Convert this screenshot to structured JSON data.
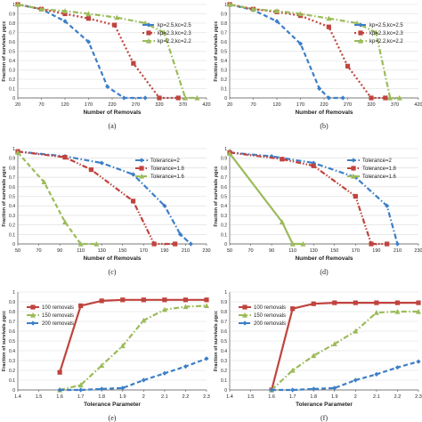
{
  "chart_data": [
    {
      "type": "line",
      "caption": "(a)",
      "ylabel": "Fraction of survivals ρgcc",
      "xlabel": "Number of Removals",
      "xlim": [
        20,
        420
      ],
      "xticks": [
        20,
        70,
        120,
        170,
        220,
        270,
        320,
        370,
        420
      ],
      "ylim": [
        0,
        1
      ],
      "yticks": [
        0,
        0.1,
        0.2,
        0.3,
        0.4,
        0.5,
        0.6,
        0.7,
        0.8,
        0.9,
        1
      ],
      "legend_position": "right",
      "series": [
        {
          "name": "kp=2.5,kc=2.5",
          "color": "#3d7fc7",
          "dash": "dash",
          "marker": "diamond",
          "x": [
            20,
            70,
            120,
            170,
            210,
            245,
            290
          ],
          "y": [
            1.0,
            0.95,
            0.82,
            0.6,
            0.12,
            0.0,
            0.0
          ]
        },
        {
          "name": "kp=2.3,kc=2.3",
          "color": "#c0433e",
          "dash": "dot",
          "marker": "square",
          "x": [
            20,
            70,
            120,
            170,
            225,
            265,
            320,
            360
          ],
          "y": [
            1.0,
            0.95,
            0.9,
            0.85,
            0.78,
            0.37,
            0.0,
            0.0
          ]
        },
        {
          "name": "kp=2.2,kc=2.2",
          "color": "#9bbb59",
          "dash": "dashdot",
          "marker": "triangle",
          "x": [
            20,
            70,
            120,
            170,
            230,
            290,
            330,
            375,
            400
          ],
          "y": [
            1.0,
            0.95,
            0.93,
            0.9,
            0.86,
            0.8,
            0.7,
            0.0,
            0.0
          ]
        }
      ]
    },
    {
      "type": "line",
      "caption": "(b)",
      "ylabel": "Fraction of survivals ρgcc",
      "xlabel": "Number of Removals",
      "xlim": [
        20,
        420
      ],
      "xticks": [
        20,
        70,
        120,
        170,
        220,
        270,
        320,
        370,
        420
      ],
      "ylim": [
        0,
        1
      ],
      "yticks": [
        0,
        0.1,
        0.2,
        0.3,
        0.4,
        0.5,
        0.6,
        0.7,
        0.8,
        0.9,
        1
      ],
      "legend_position": "right",
      "series": [
        {
          "name": "kp=2.5,kc=2.5",
          "color": "#3d7fc7",
          "dash": "dash",
          "marker": "diamond",
          "x": [
            20,
            70,
            120,
            170,
            210,
            230,
            260
          ],
          "y": [
            1.0,
            0.94,
            0.82,
            0.58,
            0.1,
            0.0,
            0.0
          ]
        },
        {
          "name": "kp=2.3,kc=2.3",
          "color": "#c0433e",
          "dash": "dot",
          "marker": "square",
          "x": [
            20,
            70,
            120,
            170,
            230,
            270,
            320,
            350
          ],
          "y": [
            1.0,
            0.95,
            0.92,
            0.88,
            0.76,
            0.34,
            0.0,
            0.0
          ]
        },
        {
          "name": "kp=2.2,kc=2.2",
          "color": "#9bbb59",
          "dash": "dashdot",
          "marker": "triangle",
          "x": [
            20,
            70,
            120,
            170,
            230,
            290,
            330,
            360,
            380
          ],
          "y": [
            1.0,
            0.95,
            0.93,
            0.9,
            0.85,
            0.8,
            0.7,
            0.0,
            0.0
          ]
        }
      ]
    },
    {
      "type": "line",
      "caption": "(c)",
      "ylabel": "Fraction of survivals ρgcc",
      "xlabel": "Number of Removals",
      "xlim": [
        50,
        230
      ],
      "xticks": [
        50,
        70,
        90,
        110,
        130,
        150,
        170,
        190,
        210,
        230
      ],
      "ylim": [
        0,
        1
      ],
      "yticks": [
        0,
        0.1,
        0.2,
        0.3,
        0.4,
        0.5,
        0.6,
        0.7,
        0.8,
        0.9,
        1
      ],
      "legend_position": "top-right",
      "series": [
        {
          "name": "Tolerance=2",
          "color": "#3d7fc7",
          "dash": "dashdot",
          "marker": "diamond",
          "x": [
            50,
            95,
            130,
            160,
            190,
            205,
            215
          ],
          "y": [
            0.97,
            0.92,
            0.85,
            0.73,
            0.4,
            0.1,
            0.0
          ]
        },
        {
          "name": "Tolerance=1.8",
          "color": "#c0433e",
          "dash": "dashdotdot",
          "marker": "square",
          "x": [
            50,
            95,
            120,
            160,
            180,
            200
          ],
          "y": [
            0.97,
            0.91,
            0.78,
            0.45,
            0.0,
            0.0
          ]
        },
        {
          "name": "Tolerance=1.6",
          "color": "#9bbb59",
          "dash": "dash",
          "marker": "triangle",
          "x": [
            50,
            75,
            95,
            110,
            125
          ],
          "y": [
            0.96,
            0.65,
            0.23,
            0.0,
            0.0
          ]
        }
      ]
    },
    {
      "type": "line",
      "caption": "(d)",
      "ylabel": "Fraction of survivals ρgcc",
      "xlabel": "Number of Removals",
      "xlim": [
        50,
        230
      ],
      "xticks": [
        50,
        70,
        90,
        110,
        130,
        150,
        170,
        190,
        210,
        230
      ],
      "ylim": [
        0,
        1
      ],
      "yticks": [
        0,
        0.1,
        0.2,
        0.3,
        0.4,
        0.5,
        0.6,
        0.7,
        0.8,
        0.9,
        1
      ],
      "legend_position": "top-right",
      "series": [
        {
          "name": "Tolerance=2",
          "color": "#3d7fc7",
          "dash": "dashdot",
          "marker": "diamond",
          "x": [
            50,
            90,
            130,
            170,
            200,
            210
          ],
          "y": [
            0.96,
            0.92,
            0.85,
            0.7,
            0.4,
            0.0
          ]
        },
        {
          "name": "Tolerance=1.8",
          "color": "#c0433e",
          "dash": "dashdotdot",
          "marker": "square",
          "x": [
            50,
            100,
            130,
            170,
            185,
            200
          ],
          "y": [
            0.96,
            0.89,
            0.82,
            0.5,
            0.0,
            0.0
          ]
        },
        {
          "name": "Tolerance=1.6",
          "color": "#9bbb59",
          "dash": "solid",
          "marker": "triangle",
          "x": [
            50,
            100,
            110,
            120
          ],
          "y": [
            0.95,
            0.23,
            0.0,
            0.0
          ]
        }
      ]
    },
    {
      "type": "line",
      "caption": "(e)",
      "ylabel": "Fraction of survivals ρgcc",
      "xlabel": "Tolerance Parameter",
      "xlim": [
        1.4,
        2.3
      ],
      "xticks": [
        1.4,
        1.5,
        1.6,
        1.7,
        1.8,
        1.9,
        2,
        2.1,
        2.2,
        2.3
      ],
      "ylim": [
        0,
        1
      ],
      "yticks": [
        0,
        0.1,
        0.2,
        0.3,
        0.4,
        0.5,
        0.6,
        0.7,
        0.8,
        0.9,
        1
      ],
      "legend_position": "top-left",
      "series": [
        {
          "name": "100 removals",
          "color": "#c0433e",
          "dash": "solid",
          "marker": "square",
          "x": [
            1.6,
            1.7,
            1.8,
            1.9,
            2.0,
            2.1,
            2.2,
            2.3
          ],
          "y": [
            0.18,
            0.86,
            0.91,
            0.92,
            0.92,
            0.92,
            0.92,
            0.92
          ]
        },
        {
          "name": "150 removals",
          "color": "#9bbb59",
          "dash": "dashdot",
          "marker": "triangle",
          "x": [
            1.6,
            1.7,
            1.8,
            1.9,
            2.0,
            2.1,
            2.2,
            2.3
          ],
          "y": [
            0.0,
            0.05,
            0.25,
            0.45,
            0.71,
            0.82,
            0.85,
            0.86
          ]
        },
        {
          "name": "200 removals",
          "color": "#3d7fc7",
          "dash": "dash",
          "marker": "diamond",
          "x": [
            1.6,
            1.7,
            1.8,
            1.9,
            2.0,
            2.1,
            2.2,
            2.3
          ],
          "y": [
            0.0,
            0.0,
            0.01,
            0.02,
            0.1,
            0.17,
            0.24,
            0.32
          ]
        }
      ]
    },
    {
      "type": "line",
      "caption": "(f)",
      "ylabel": "Fraction of survivals ρgcc",
      "xlabel": "Tolerance Parameter",
      "xlim": [
        1.4,
        2.3
      ],
      "xticks": [
        1.4,
        1.5,
        1.6,
        1.7,
        1.8,
        1.9,
        2,
        2.1,
        2.2,
        2.3
      ],
      "ylim": [
        0,
        1
      ],
      "yticks": [
        0,
        0.1,
        0.2,
        0.3,
        0.4,
        0.5,
        0.6,
        0.7,
        0.8,
        0.9,
        1
      ],
      "legend_position": "top-left",
      "series": [
        {
          "name": "100 removals",
          "color": "#c0433e",
          "dash": "solid",
          "marker": "square",
          "x": [
            1.6,
            1.7,
            1.8,
            1.9,
            2.0,
            2.1,
            2.2,
            2.3
          ],
          "y": [
            0.0,
            0.83,
            0.88,
            0.89,
            0.89,
            0.89,
            0.89,
            0.89
          ]
        },
        {
          "name": "150 removals",
          "color": "#9bbb59",
          "dash": "dashdot",
          "marker": "triangle",
          "x": [
            1.6,
            1.7,
            1.8,
            1.9,
            2.0,
            2.1,
            2.2,
            2.3
          ],
          "y": [
            0.0,
            0.2,
            0.35,
            0.47,
            0.6,
            0.79,
            0.8,
            0.8
          ]
        },
        {
          "name": "200 removals",
          "color": "#3d7fc7",
          "dash": "dash",
          "marker": "diamond",
          "x": [
            1.6,
            1.7,
            1.8,
            1.9,
            2.0,
            2.1,
            2.2,
            2.3
          ],
          "y": [
            0.0,
            0.0,
            0.01,
            0.02,
            0.1,
            0.16,
            0.23,
            0.29
          ]
        }
      ]
    }
  ]
}
